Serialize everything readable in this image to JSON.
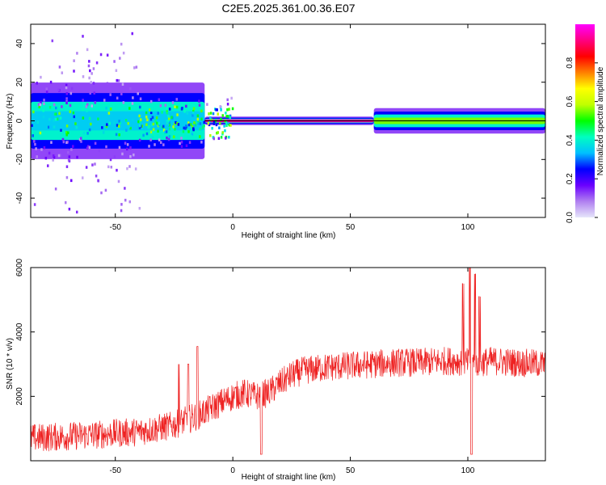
{
  "title": "C2E5.2025.361.00.36.E07",
  "chart_data": [
    {
      "type": "heatmap",
      "name": "spectrogram",
      "xlabel": "Height of straight line (km)",
      "ylabel": "Frequency (Hz)",
      "xlim": [
        -86,
        133
      ],
      "ylim": [
        -50,
        50
      ],
      "xticks": [
        -50,
        0,
        50,
        100
      ],
      "yticks": [
        -40,
        -20,
        0,
        20,
        40
      ],
      "xtick_labels": [
        "-50",
        "0",
        "50",
        "100"
      ],
      "ytick_labels": [
        "-40",
        "-20",
        "0",
        "20",
        "40"
      ],
      "colorbar": {
        "label": "Normalized spectral amplitude",
        "range": [
          0,
          1
        ],
        "ticks": [
          0.0,
          0.2,
          0.4,
          0.6,
          0.8
        ],
        "tick_labels": [
          "0.0",
          "0.2",
          "0.4",
          "0.6",
          "0.8"
        ],
        "colors": [
          "#e6e6fa",
          "#b07ff0",
          "#6a00ff",
          "#0000ff",
          "#00c0ff",
          "#00ffc0",
          "#00ff00",
          "#c0ff00",
          "#ffff00",
          "#ff8000",
          "#ff0000",
          "#ff0080",
          "#ff00ff"
        ]
      },
      "ridge": [
        {
          "x_range": [
            -86,
            -12
          ],
          "freq_halfwidth": 9,
          "amplitude": 0.35
        },
        {
          "x_range": [
            -12,
            60
          ],
          "freq_halfwidth": 1,
          "amplitude": 0.95
        },
        {
          "x_range": [
            60,
            133
          ],
          "freq_halfwidth": 3,
          "amplitude": 0.55
        }
      ]
    },
    {
      "type": "line",
      "name": "snr",
      "xlabel": "Height of straight line (km)",
      "ylabel": "SNR (10 * v/v)",
      "xlim": [
        -86,
        133
      ],
      "ylim": [
        0,
        6000
      ],
      "xticks": [
        -50,
        0,
        50,
        100
      ],
      "yticks": [
        2000,
        4000,
        6000
      ],
      "xtick_labels": [
        "-50",
        "0",
        "50",
        "100"
      ],
      "ytick_labels": [
        "2000",
        "4000",
        "6000"
      ],
      "color": "#ee2222",
      "trend": {
        "x": [
          -86,
          -60,
          -40,
          -25,
          -15,
          -5,
          0,
          5,
          10,
          15,
          20,
          25,
          30,
          40,
          50,
          60,
          70,
          80,
          90,
          95,
          100,
          105,
          110,
          120,
          133
        ],
        "y": [
          700,
          800,
          900,
          1100,
          1400,
          1800,
          2000,
          2100,
          2000,
          2100,
          2400,
          2650,
          2800,
          2900,
          2950,
          3000,
          3050,
          3050,
          3100,
          3100,
          3050,
          3050,
          3100,
          3050,
          3000
        ]
      },
      "spikes": [
        {
          "x": -23,
          "y": 3000
        },
        {
          "x": -19,
          "y": 3000
        },
        {
          "x": -15,
          "y": 3550
        },
        {
          "x": 12,
          "y": 200
        },
        {
          "x": 98,
          "y": 5500
        },
        {
          "x": 101,
          "y": 6000
        },
        {
          "x": 101.5,
          "y": 200
        },
        {
          "x": 103,
          "y": 5800
        },
        {
          "x": 105,
          "y": 5100
        }
      ]
    }
  ]
}
